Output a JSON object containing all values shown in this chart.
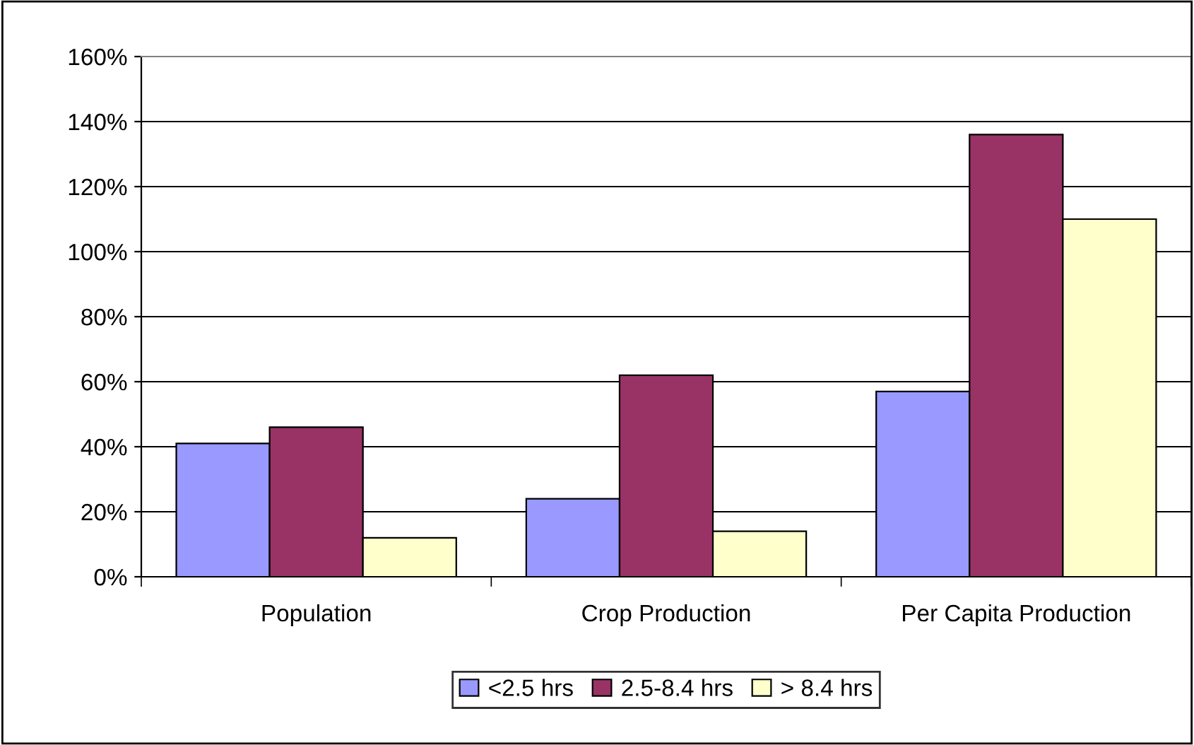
{
  "chart_data": {
    "type": "bar",
    "categories": [
      "Population",
      "Crop Production",
      "Per Capita Production"
    ],
    "series": [
      {
        "name": "<2.5 hrs",
        "color": "#9999ff",
        "values": [
          41,
          24,
          57
        ]
      },
      {
        "name": "2.5-8.4 hrs",
        "color": "#993366",
        "values": [
          46,
          62,
          136
        ]
      },
      {
        "name": "> 8.4 hrs",
        "color": "#ffffcc",
        "values": [
          12,
          14,
          110
        ]
      }
    ],
    "ylim": [
      0,
      160
    ],
    "yticks": [
      {
        "value": 0,
        "label": "0%"
      },
      {
        "value": 20,
        "label": "20%"
      },
      {
        "value": 40,
        "label": "40%"
      },
      {
        "value": 60,
        "label": "60%"
      },
      {
        "value": 80,
        "label": "80%"
      },
      {
        "value": 100,
        "label": "100%"
      },
      {
        "value": 120,
        "label": "120%"
      },
      {
        "value": 140,
        "label": "140%"
      },
      {
        "value": 160,
        "label": "160%"
      }
    ],
    "grid": "y",
    "legend": "bottom"
  }
}
